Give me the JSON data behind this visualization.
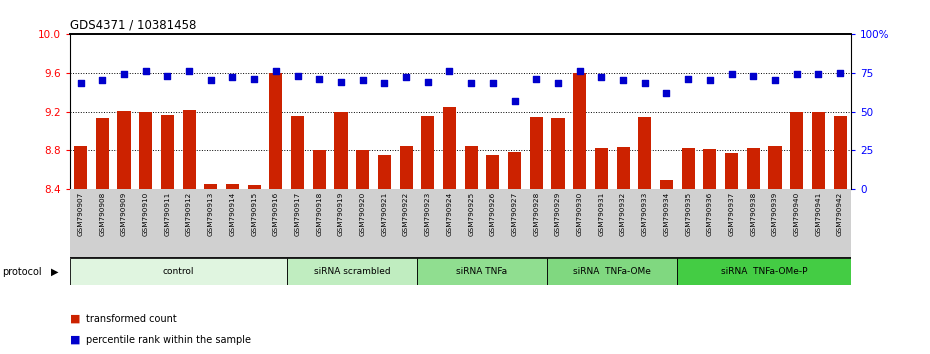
{
  "title": "GDS4371 / 10381458",
  "samples": [
    "GSM790907",
    "GSM790908",
    "GSM790909",
    "GSM790910",
    "GSM790911",
    "GSM790912",
    "GSM790913",
    "GSM790914",
    "GSM790915",
    "GSM790916",
    "GSM790917",
    "GSM790918",
    "GSM790919",
    "GSM790920",
    "GSM790921",
    "GSM790922",
    "GSM790923",
    "GSM790924",
    "GSM790925",
    "GSM790926",
    "GSM790927",
    "GSM790928",
    "GSM790929",
    "GSM790930",
    "GSM790931",
    "GSM790932",
    "GSM790933",
    "GSM790934",
    "GSM790935",
    "GSM790936",
    "GSM790937",
    "GSM790938",
    "GSM790939",
    "GSM790940",
    "GSM790941",
    "GSM790942"
  ],
  "bar_values": [
    8.85,
    9.13,
    9.21,
    9.19,
    9.16,
    9.22,
    8.46,
    8.46,
    8.45,
    9.6,
    9.15,
    8.8,
    9.19,
    8.8,
    8.75,
    8.85,
    9.15,
    9.25,
    8.85,
    8.75,
    8.78,
    9.14,
    9.13,
    9.6,
    8.83,
    8.84,
    9.14,
    8.5,
    8.83,
    8.81,
    8.77,
    8.83,
    8.85,
    9.2,
    9.2,
    9.15
  ],
  "dot_values": [
    68,
    70,
    74,
    76,
    73,
    76,
    70,
    72,
    71,
    76,
    73,
    71,
    69,
    70,
    68,
    72,
    69,
    76,
    68,
    68,
    57,
    71,
    68,
    76,
    72,
    70,
    68,
    62,
    71,
    70,
    74,
    73,
    70,
    74,
    74,
    75
  ],
  "protocols": [
    {
      "label": "control",
      "start": 0,
      "end": 9,
      "color": "#e0f5e0"
    },
    {
      "label": "siRNA scrambled",
      "start": 10,
      "end": 15,
      "color": "#c0edc0"
    },
    {
      "label": "siRNA TNFa",
      "start": 16,
      "end": 21,
      "color": "#90de90"
    },
    {
      "label": "siRNA  TNFa-OMe",
      "start": 22,
      "end": 27,
      "color": "#80d880"
    },
    {
      "label": "siRNA  TNFa-OMe-P",
      "start": 28,
      "end": 35,
      "color": "#44cc44"
    }
  ],
  "ylim_left": [
    8.4,
    10.0
  ],
  "ylim_right": [
    0,
    100
  ],
  "yticks_left": [
    8.4,
    8.8,
    9.2,
    9.6,
    10.0
  ],
  "yticks_right": [
    0,
    25,
    50,
    75,
    100
  ],
  "bar_color": "#cc2200",
  "dot_color": "#0000cc",
  "xtick_bg": "#d0d0d0"
}
